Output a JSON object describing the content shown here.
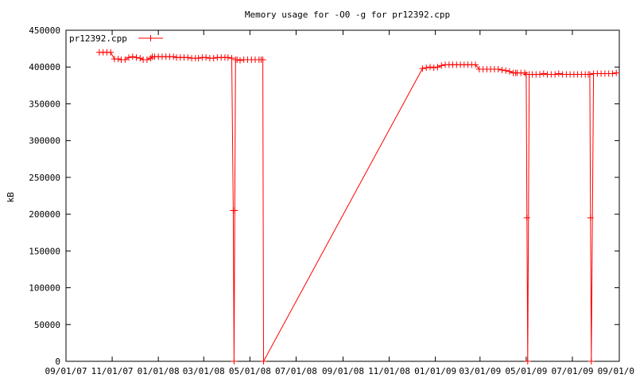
{
  "chart_data": {
    "type": "line",
    "title": "Memory usage for -O0 -g for pr12392.cpp",
    "xlabel": "",
    "ylabel": "kB",
    "x_type": "date",
    "xlim": [
      "2007-09-01",
      "2009-09-01"
    ],
    "ylim": [
      0,
      450000
    ],
    "x_ticks": [
      "2007-09-01",
      "2007-11-01",
      "2008-01-01",
      "2008-03-01",
      "2008-05-01",
      "2008-07-01",
      "2008-09-01",
      "2008-11-01",
      "2009-01-01",
      "2009-03-01",
      "2009-05-01",
      "2009-07-01",
      "2009-09-01"
    ],
    "x_tick_labels": [
      "09/01/07",
      "11/01/07",
      "01/01/08",
      "03/01/08",
      "05/01/08",
      "07/01/08",
      "09/01/08",
      "11/01/08",
      "01/01/09",
      "03/01/09",
      "05/01/09",
      "07/01/09",
      "09/01/0"
    ],
    "y_ticks": [
      0,
      50000,
      100000,
      150000,
      200000,
      250000,
      300000,
      350000,
      400000,
      450000
    ],
    "y_tick_labels": [
      "0",
      "50000",
      "100000",
      "150000",
      "200000",
      "250000",
      "300000",
      "350000",
      "400000",
      "450000"
    ],
    "grid": false,
    "legend": "top-left",
    "color": "#ff0000",
    "marker": "plus",
    "series": [
      {
        "name": "pr12392.cpp",
        "x": [
          "2007-10-15",
          "2007-10-20",
          "2007-10-25",
          "2007-10-30",
          "2007-11-04",
          "2007-11-09",
          "2007-11-13",
          "2007-11-18",
          "2007-11-23",
          "2007-11-28",
          "2007-12-03",
          "2007-12-08",
          "2007-12-12",
          "2007-12-17",
          "2007-12-22",
          "2007-12-24",
          "2007-12-27",
          "2008-01-01",
          "2008-01-06",
          "2008-01-11",
          "2008-01-16",
          "2008-01-21",
          "2008-01-25",
          "2008-01-30",
          "2008-02-04",
          "2008-02-09",
          "2008-02-14",
          "2008-02-19",
          "2008-02-23",
          "2008-02-28",
          "2008-03-04",
          "2008-03-09",
          "2008-03-14",
          "2008-03-19",
          "2008-03-24",
          "2008-03-29",
          "2008-04-02",
          "2008-04-07",
          "2008-04-09",
          "2008-04-10",
          "2008-04-11",
          "2008-04-12",
          "2008-04-14",
          "2008-04-18",
          "2008-04-23",
          "2008-04-28",
          "2008-05-03",
          "2008-05-08",
          "2008-05-13",
          "2008-05-16",
          "2008-05-18",
          "2008-05-19",
          "2008-12-15",
          "2008-12-20",
          "2008-12-25",
          "2008-12-30",
          "2009-01-04",
          "2009-01-09",
          "2009-01-14",
          "2009-01-19",
          "2009-01-24",
          "2009-01-29",
          "2009-02-03",
          "2009-02-08",
          "2009-02-13",
          "2009-02-18",
          "2009-02-23",
          "2009-02-28",
          "2009-03-05",
          "2009-03-10",
          "2009-03-15",
          "2009-03-20",
          "2009-03-25",
          "2009-03-30",
          "2009-04-04",
          "2009-04-09",
          "2009-04-14",
          "2009-04-17",
          "2009-04-19",
          "2009-04-24",
          "2009-04-29",
          "2009-05-01",
          "2009-05-02",
          "2009-05-03",
          "2009-05-05",
          "2009-05-09",
          "2009-05-14",
          "2009-05-19",
          "2009-05-24",
          "2009-05-29",
          "2009-06-03",
          "2009-06-08",
          "2009-06-13",
          "2009-06-18",
          "2009-06-23",
          "2009-06-28",
          "2009-07-03",
          "2009-07-08",
          "2009-07-13",
          "2009-07-18",
          "2009-07-22",
          "2009-07-24",
          "2009-07-25",
          "2009-07-26",
          "2009-07-29",
          "2009-08-03",
          "2009-08-08",
          "2009-08-13",
          "2009-08-18",
          "2009-08-23",
          "2009-08-28"
        ],
        "values": [
          420000,
          420000,
          420000,
          420000,
          411000,
          411000,
          410000,
          410000,
          413000,
          414000,
          413000,
          412000,
          410000,
          410000,
          412000,
          414000,
          414000,
          414000,
          414000,
          414000,
          414000,
          414000,
          413000,
          413000,
          413000,
          413000,
          412000,
          412000,
          412000,
          413000,
          413000,
          412000,
          412000,
          413000,
          413000,
          413000,
          413000,
          412000,
          205000,
          0,
          205000,
          410000,
          410000,
          409000,
          410000,
          410000,
          410000,
          410000,
          410000,
          410000,
          410000,
          0,
          398000,
          399000,
          400000,
          399000,
          400000,
          402000,
          403000,
          403000,
          403000,
          403000,
          403000,
          403000,
          403000,
          403000,
          403000,
          397000,
          397000,
          397000,
          397000,
          397000,
          397000,
          396000,
          395000,
          394000,
          392000,
          392000,
          392000,
          392000,
          392000,
          390000,
          195000,
          0,
          390000,
          390000,
          390000,
          390000,
          391000,
          390000,
          390000,
          390000,
          391000,
          390000,
          390000,
          390000,
          390000,
          390000,
          390000,
          390000,
          390000,
          390000,
          195000,
          0,
          391000,
          391000,
          391000,
          391000,
          391000,
          391000,
          392000
        ]
      }
    ]
  }
}
